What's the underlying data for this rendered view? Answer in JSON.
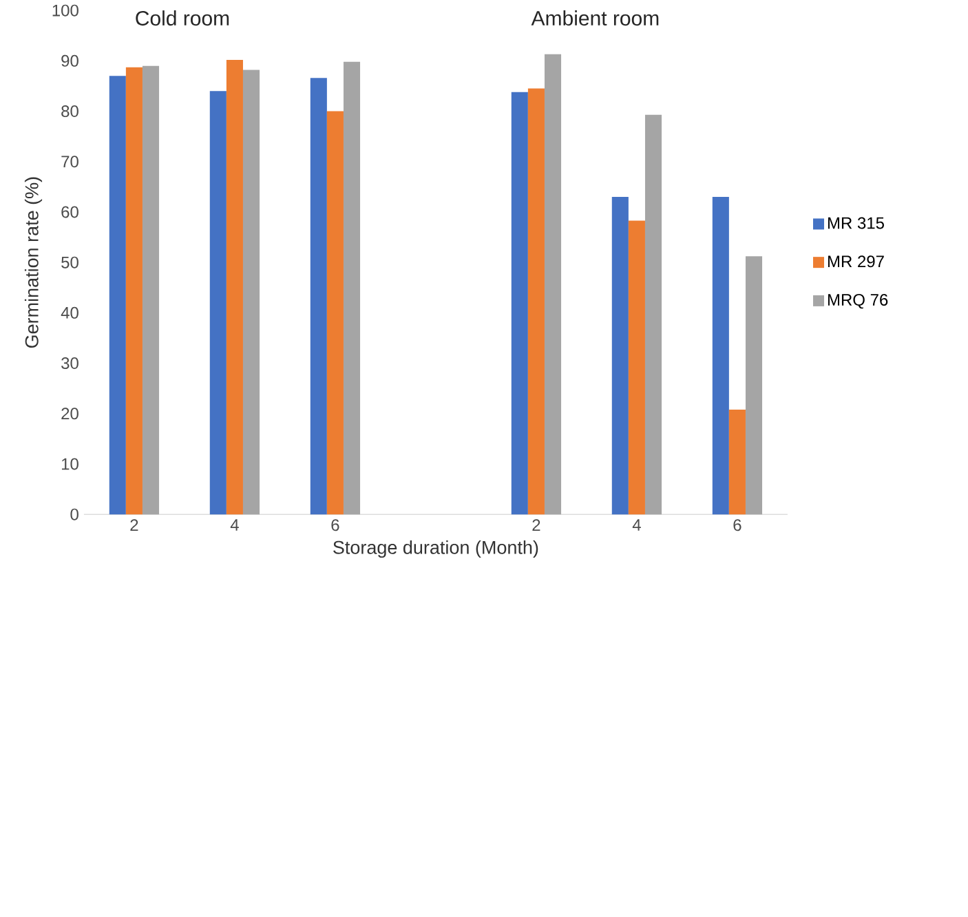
{
  "chart_data": {
    "type": "bar",
    "categories": [
      "2",
      "4",
      "6",
      null,
      "2",
      "4",
      "6"
    ],
    "series": [
      {
        "name": "MR 315",
        "color": "#4472c4",
        "values": [
          87,
          84,
          86.6,
          null,
          83.8,
          63,
          63
        ]
      },
      {
        "name": "MR 297",
        "color": "#ed7d31",
        "values": [
          88.7,
          90.2,
          80,
          null,
          84.5,
          58.3,
          20.8
        ]
      },
      {
        "name": "MRQ 76",
        "color": "#a5a5a5",
        "values": [
          89,
          88.2,
          89.8,
          null,
          91.3,
          79.3,
          51.2
        ]
      }
    ],
    "xlabel": "Storage duration (Month)",
    "ylabel": "Germination rate (%)",
    "ylim": [
      0,
      100
    ],
    "yticks": [
      0,
      10,
      20,
      30,
      40,
      50,
      60,
      70,
      80,
      90,
      100
    ],
    "annotations": [
      "Cold room",
      "Ambient room"
    ],
    "legend": "right"
  }
}
